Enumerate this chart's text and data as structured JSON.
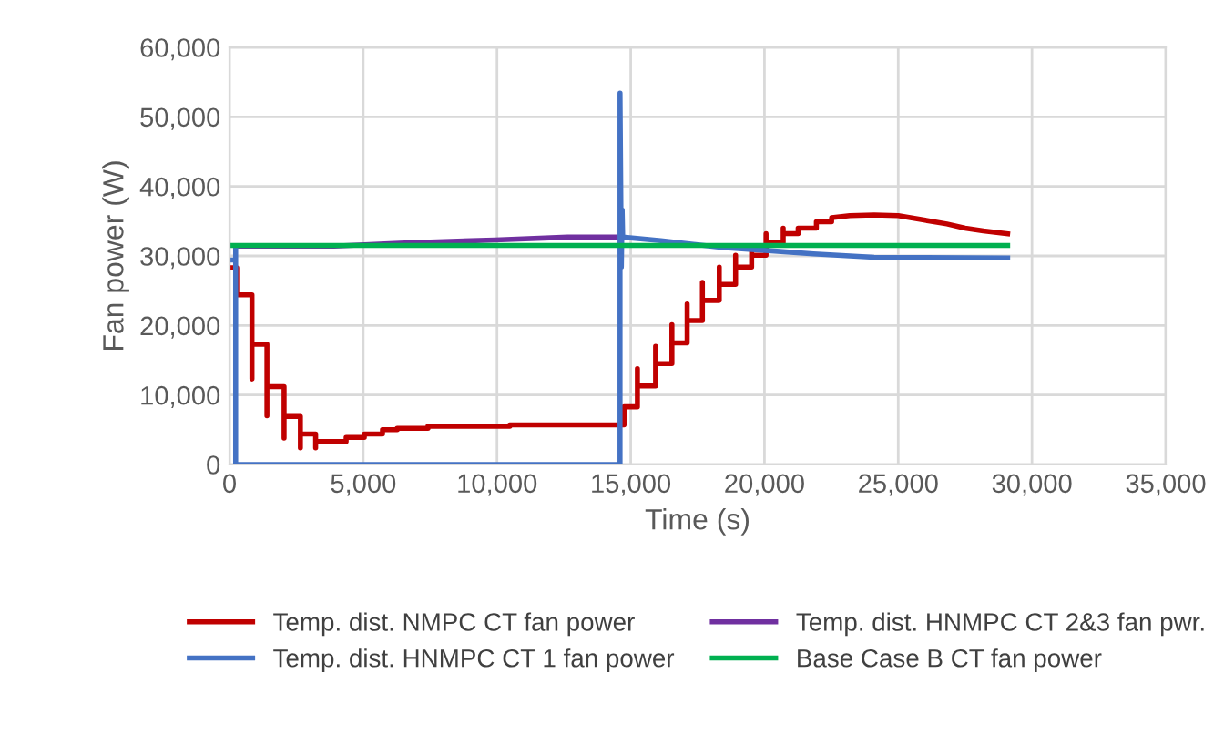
{
  "chart_data": {
    "type": "line",
    "xlabel": "Time (s)",
    "ylabel": "Fan power (W)",
    "xlim": [
      0,
      35000
    ],
    "ylim": [
      0,
      60000
    ],
    "xticks": [
      0,
      {
        "value": 5000,
        "label": "5,000"
      },
      {
        "value": 10000,
        "label": "10,000"
      },
      {
        "value": 15000,
        "label": "15,000"
      },
      {
        "value": 20000,
        "label": "20,000"
      },
      {
        "value": 25000,
        "label": "25,000"
      },
      {
        "value": 30000,
        "label": "30,000"
      },
      {
        "value": 35000,
        "label": "35,000"
      }
    ],
    "yticks": [
      0,
      {
        "value": 10000,
        "label": "10,000"
      },
      {
        "value": 20000,
        "label": "20,000"
      },
      {
        "value": 30000,
        "label": "30,000"
      },
      {
        "value": 40000,
        "label": "40,000"
      },
      {
        "value": 50000,
        "label": "50,000"
      },
      {
        "value": 60000,
        "label": "60,000"
      }
    ],
    "grid": true,
    "legend": "bottom",
    "marker": "none",
    "line_style": "solid",
    "series": [
      {
        "name": "Temp. dist. NMPC CT fan power",
        "color": "#c00000",
        "x": [
          0,
          270,
          270,
          840,
          840,
          840,
          1400,
          1400,
          1400,
          2040,
          2040,
          2040,
          2650,
          2650,
          2650,
          3220,
          3220,
          3220,
          4360,
          4360,
          5040,
          5040,
          5720,
          5720,
          6270,
          6270,
          7420,
          7420,
          10480,
          10480,
          14750,
          14750,
          15250,
          15250,
          15250,
          15930,
          15930,
          15930,
          16540,
          16540,
          16540,
          17110,
          17110,
          17110,
          17680,
          17680,
          17680,
          18310,
          18310,
          18310,
          18920,
          18920,
          18920,
          19520,
          19520,
          19520,
          20060,
          20060,
          20060,
          20700,
          20700,
          20700,
          21260,
          21260,
          21940,
          21940,
          22510,
          22510,
          23190,
          24100,
          25000,
          25910,
          26820,
          27500,
          28180,
          29090
        ],
        "values": [
          28300,
          28300,
          24400,
          24400,
          12300,
          17300,
          17300,
          7000,
          11200,
          11200,
          3800,
          6900,
          6900,
          2400,
          4400,
          4400,
          2400,
          3300,
          3300,
          3900,
          3900,
          4400,
          4400,
          5000,
          5000,
          5200,
          5200,
          5500,
          5500,
          5700,
          5700,
          8300,
          8300,
          13800,
          11300,
          11300,
          17000,
          14500,
          14500,
          20100,
          17500,
          17500,
          23100,
          20700,
          20700,
          26200,
          23600,
          23600,
          28400,
          25900,
          25900,
          30100,
          28400,
          28400,
          31400,
          30100,
          30100,
          33200,
          31900,
          31900,
          34000,
          33200,
          33200,
          34000,
          34000,
          34900,
          34900,
          35500,
          35800,
          35900,
          35800,
          35200,
          34600,
          34000,
          33600,
          33200
        ]
      },
      {
        "name": "Temp. dist. HNMPC CT 2&3 fan pwr.",
        "color": "#7030a0",
        "x": [
          230,
          3900,
          5040,
          6740,
          9920,
          12640,
          14600
        ],
        "values": [
          31400,
          31400,
          31600,
          31900,
          32300,
          32700,
          32700
        ]
      },
      {
        "name": "Temp. dist. HNMPC CT 1 fan power",
        "color": "#4472c4",
        "x": [
          0,
          230,
          230,
          230,
          14600,
          14600,
          14650,
          14680,
          14700,
          16130,
          18430,
          20010,
          21830,
          24100,
          29090
        ],
        "values": [
          29400,
          29400,
          31400,
          0,
          0,
          53400,
          28400,
          36600,
          32700,
          32200,
          31200,
          30800,
          30300,
          29800,
          29700
        ]
      },
      {
        "name": "Base Case B CT fan power",
        "color": "#00b050",
        "x": [
          0,
          29090
        ],
        "values": [
          31500,
          31500
        ]
      }
    ]
  }
}
